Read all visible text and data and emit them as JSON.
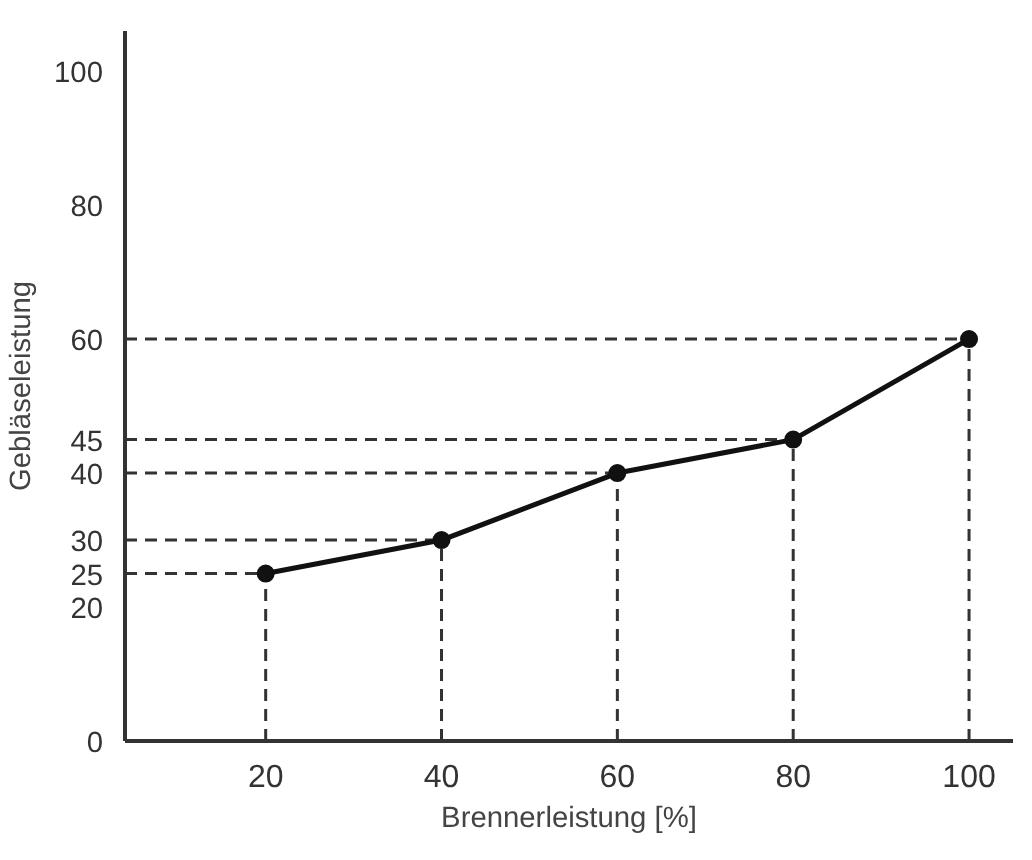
{
  "chart_data": {
    "type": "line",
    "xlabel": "Brennerleistung [%]",
    "ylabel": "Gebläseleistung",
    "x": [
      20,
      40,
      60,
      80,
      100
    ],
    "series": [
      {
        "color": "#111111",
        "values": [
          25,
          30,
          40,
          45,
          60
        ]
      }
    ],
    "marker": "circle",
    "line_style": "solid",
    "xlim": [
      4,
      105
    ],
    "ylim": [
      0,
      106
    ],
    "xticks": [
      20,
      40,
      60,
      80,
      100
    ],
    "yticks": [
      0,
      20,
      25,
      30,
      40,
      45,
      60,
      80,
      100
    ],
    "ref_lines": [
      {
        "axis": "y",
        "value": 25,
        "color": "#333333",
        "line_style": "dashed"
      },
      {
        "axis": "y",
        "value": 30,
        "color": "#333333",
        "line_style": "dashed"
      },
      {
        "axis": "y",
        "value": 40,
        "color": "#333333",
        "line_style": "dashed"
      },
      {
        "axis": "y",
        "value": 45,
        "color": "#333333",
        "line_style": "dashed"
      },
      {
        "axis": "y",
        "value": 60,
        "color": "#333333",
        "line_style": "dashed"
      },
      {
        "axis": "x",
        "value": 20,
        "color": "#333333",
        "line_style": "dashed"
      },
      {
        "axis": "x",
        "value": 40,
        "color": "#333333",
        "line_style": "dashed"
      },
      {
        "axis": "x",
        "value": 60,
        "color": "#333333",
        "line_style": "dashed"
      },
      {
        "axis": "x",
        "value": 80,
        "color": "#333333",
        "line_style": "dashed"
      },
      {
        "axis": "x",
        "value": 100,
        "color": "#333333",
        "line_style": "dashed"
      }
    ]
  }
}
